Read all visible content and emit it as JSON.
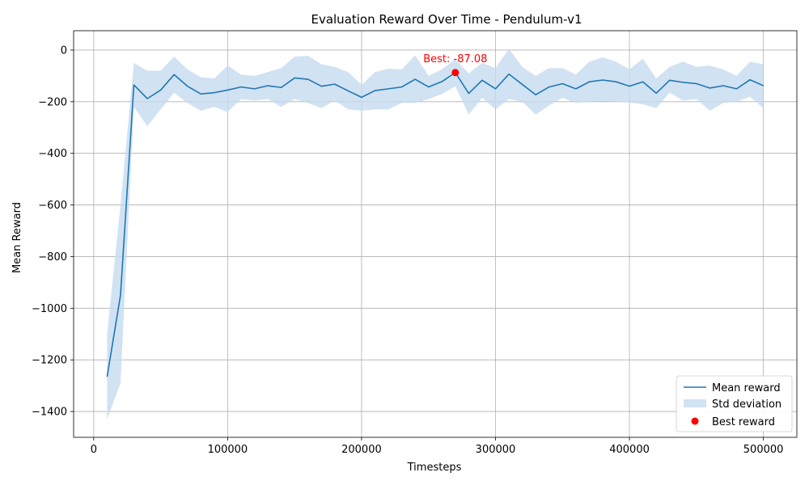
{
  "chart_data": {
    "type": "line",
    "title": "Evaluation Reward Over Time - Pendulum-v1",
    "xlabel": "Timesteps",
    "ylabel": "Mean Reward",
    "xlim": [
      -15000,
      525000
    ],
    "ylim": [
      -1500,
      75
    ],
    "x_ticks": [
      0,
      100000,
      200000,
      300000,
      400000,
      500000
    ],
    "y_ticks": [
      -1400,
      -1200,
      -1000,
      -800,
      -600,
      -400,
      -200,
      0
    ],
    "grid": true,
    "legend_position": "bottom-right",
    "colors": {
      "line": "#1f77b4",
      "band": "#c6dbef",
      "best": "#ff0000",
      "annotation": "#ff0000"
    },
    "legend": [
      {
        "key": "mean",
        "label": "Mean reward"
      },
      {
        "key": "std",
        "label": "Std deviation"
      },
      {
        "key": "best",
        "label": "Best reward"
      }
    ],
    "x": [
      10000,
      20000,
      30000,
      40000,
      50000,
      60000,
      70000,
      80000,
      90000,
      100000,
      110000,
      120000,
      130000,
      140000,
      150000,
      160000,
      170000,
      180000,
      190000,
      200000,
      210000,
      220000,
      230000,
      240000,
      250000,
      260000,
      270000,
      280000,
      290000,
      300000,
      310000,
      320000,
      330000,
      340000,
      350000,
      360000,
      370000,
      380000,
      390000,
      400000,
      410000,
      420000,
      430000,
      440000,
      450000,
      460000,
      470000,
      480000,
      490000,
      500000
    ],
    "series": [
      {
        "name": "Mean reward",
        "values": [
          -1265,
          -950,
          -135,
          -188,
          -155,
          -95,
          -140,
          -170,
          -165,
          -155,
          -143,
          -150,
          -138,
          -145,
          -108,
          -113,
          -140,
          -132,
          -158,
          -183,
          -157,
          -150,
          -143,
          -113,
          -143,
          -122,
          -87.08,
          -168,
          -117,
          -150,
          -93,
          -133,
          -173,
          -143,
          -130,
          -150,
          -123,
          -116,
          -123,
          -140,
          -123,
          -167,
          -117,
          -125,
          -130,
          -147,
          -138,
          -150,
          -115,
          -138
        ]
      }
    ],
    "std_upper": [
      -1100,
      -600,
      -50,
      -80,
      -80,
      -25,
      -75,
      -105,
      -110,
      -60,
      -95,
      -100,
      -85,
      -70,
      -25,
      -22,
      -55,
      -65,
      -85,
      -135,
      -85,
      -72,
      -75,
      -20,
      -100,
      -75,
      -35,
      -90,
      -50,
      -70,
      5,
      -65,
      -100,
      -70,
      -70,
      -95,
      -45,
      -28,
      -45,
      -75,
      -33,
      -110,
      -65,
      -45,
      -65,
      -60,
      -75,
      -100,
      -45,
      -55
    ],
    "std_lower": [
      -1430,
      -1290,
      -220,
      -295,
      -230,
      -165,
      -205,
      -235,
      -220,
      -240,
      -190,
      -195,
      -190,
      -220,
      -190,
      -205,
      -225,
      -195,
      -230,
      -235,
      -230,
      -230,
      -205,
      -205,
      -190,
      -170,
      -140,
      -250,
      -185,
      -230,
      -190,
      -200,
      -250,
      -215,
      -185,
      -205,
      -200,
      -198,
      -200,
      -203,
      -210,
      -225,
      -165,
      -195,
      -190,
      -235,
      -205,
      -200,
      -180,
      -225
    ],
    "best_point": {
      "x": 270000,
      "y": -87.08,
      "label": "Best: -87.08"
    },
    "tick_labels": {
      "x": [
        "0",
        "100000",
        "200000",
        "300000",
        "400000",
        "500000"
      ],
      "y": [
        "−1400",
        "−1200",
        "−1000",
        "−800",
        "−600",
        "−400",
        "−200",
        "0"
      ]
    }
  }
}
